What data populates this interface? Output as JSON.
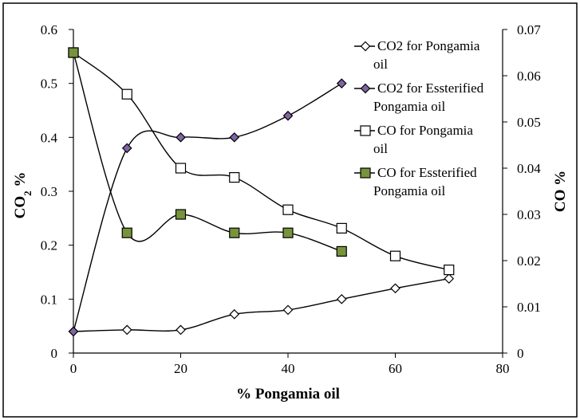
{
  "chart_data": {
    "type": "scatter",
    "title": "",
    "xlabel": "% Pongamia oil",
    "ylabel_left": {
      "main": "CO",
      "subscript": "2",
      "suffix": " %"
    },
    "ylabel_right": "CO %",
    "xlim": [
      0,
      80
    ],
    "ylim_left": [
      0,
      0.6
    ],
    "ylim_right": [
      0,
      0.07
    ],
    "x_ticks": [
      0,
      20,
      40,
      60,
      80
    ],
    "x_tick_labels": [
      "0",
      "20",
      "40",
      "60",
      "80"
    ],
    "y_left_ticks": [
      0,
      0.1,
      0.2,
      0.3,
      0.4,
      0.5,
      0.6
    ],
    "y_left_tick_labels": [
      "0",
      "0.1",
      "0.2",
      "0.3",
      "0.4",
      "0.5",
      "0.6"
    ],
    "y_right_ticks": [
      0,
      0.01,
      0.02,
      0.03,
      0.04,
      0.05,
      0.06,
      0.07
    ],
    "y_right_tick_labels": [
      "0",
      "0.01",
      "0.02",
      "0.03",
      "0.04",
      "0.05",
      "0.06",
      "0.07"
    ],
    "grid": false,
    "legend_position": "top-right",
    "series": [
      {
        "name": "CO2 for Pongamia oil",
        "legend_lines": [
          "CO2 for Pongamia",
          "oil"
        ],
        "axis": "left",
        "marker": "diamond",
        "fill": "#ffffff",
        "x": [
          0,
          10,
          20,
          30,
          40,
          50,
          60,
          70
        ],
        "values": [
          0.04,
          0.043,
          0.043,
          0.072,
          0.08,
          0.1,
          0.12,
          0.138
        ]
      },
      {
        "name": "CO2 for Essterified Pongamia oil",
        "legend_lines": [
          "CO2 for Essterified",
          "Pongamia oil"
        ],
        "axis": "left",
        "marker": "diamond",
        "fill": "#8064a2",
        "x": [
          0,
          10,
          20,
          30,
          40,
          50
        ],
        "values": [
          0.04,
          0.38,
          0.4,
          0.4,
          0.44,
          0.5
        ]
      },
      {
        "name": "CO for Pongamia oil",
        "legend_lines": [
          "CO for Pongamia",
          "oil"
        ],
        "axis": "right",
        "marker": "square",
        "fill": "#ffffff",
        "x": [
          0,
          10,
          20,
          30,
          40,
          50,
          60,
          70
        ],
        "values": [
          0.065,
          0.056,
          0.04,
          0.038,
          0.031,
          0.027,
          0.021,
          0.018
        ]
      },
      {
        "name": "CO for Essterified Pongamia oil",
        "legend_lines": [
          "CO for Essterified",
          "Pongamia oil"
        ],
        "axis": "right",
        "marker": "square",
        "fill": "#77933c",
        "x": [
          0,
          10,
          20,
          30,
          40,
          50
        ],
        "values": [
          0.065,
          0.026,
          0.03,
          0.026,
          0.026,
          0.022
        ]
      }
    ]
  }
}
